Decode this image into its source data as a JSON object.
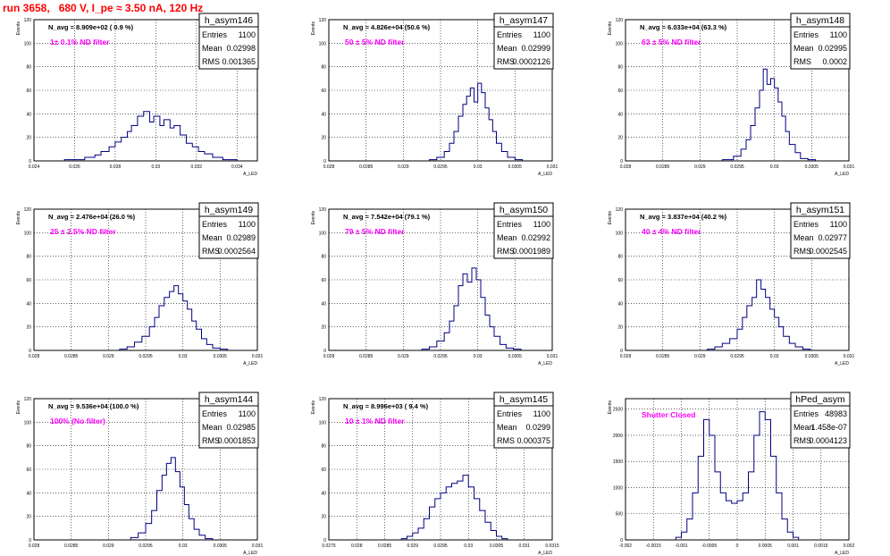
{
  "run_title": "run 3658,   680 V, I_pe ≈ 3.50 nA, 120 Hz",
  "colors": {
    "histogram": "#000080",
    "filter_label": "#ff00ff",
    "title": "#ff0000",
    "grid": "#000000"
  },
  "stats_labels": {
    "entries": "Entries",
    "mean": "Mean",
    "rms": "RMS"
  },
  "y_axis_label": "Events",
  "x_axis_label": "A_LED",
  "chart_data": [
    {
      "type": "histogram",
      "name": "h_asym146",
      "navg": "N_avg = 8.909e+02 ( 0.9 %)",
      "filter": "1± 0.1% ND filter",
      "entries": "1100",
      "mean": "0.02998",
      "rms": "0.001365",
      "xlim": [
        0.024,
        0.035
      ],
      "ylim": [
        0,
        120
      ],
      "xticks": [
        "0.024",
        "0.026",
        "0.028",
        "0.03",
        "0.032",
        "0.034"
      ],
      "xtick_values": [
        0.024,
        0.026,
        0.028,
        0.03,
        0.032,
        0.034
      ],
      "yticks": [
        "0",
        "20",
        "40",
        "60",
        "80",
        "100",
        "120"
      ],
      "bins": [
        [
          0.0255,
          0.0265,
          1
        ],
        [
          0.0265,
          0.027,
          3
        ],
        [
          0.027,
          0.0273,
          5
        ],
        [
          0.0273,
          0.0277,
          8
        ],
        [
          0.0277,
          0.028,
          12
        ],
        [
          0.028,
          0.0283,
          16
        ],
        [
          0.0283,
          0.0286,
          20
        ],
        [
          0.0286,
          0.0288,
          25
        ],
        [
          0.0288,
          0.0291,
          30
        ],
        [
          0.0291,
          0.0294,
          38
        ],
        [
          0.0294,
          0.0297,
          42
        ],
        [
          0.0297,
          0.0299,
          33
        ],
        [
          0.0299,
          0.0302,
          38
        ],
        [
          0.0302,
          0.0304,
          30
        ],
        [
          0.0304,
          0.0307,
          35
        ],
        [
          0.0307,
          0.0309,
          28
        ],
        [
          0.0309,
          0.0312,
          30
        ],
        [
          0.0312,
          0.0315,
          22
        ],
        [
          0.0315,
          0.0318,
          15
        ],
        [
          0.0318,
          0.0321,
          12
        ],
        [
          0.0321,
          0.0324,
          8
        ],
        [
          0.0324,
          0.0328,
          6
        ],
        [
          0.0328,
          0.0333,
          3
        ],
        [
          0.0333,
          0.034,
          1
        ]
      ]
    },
    {
      "type": "histogram",
      "name": "h_asym147",
      "navg": "N_avg = 4.826e+04 (50.6 %)",
      "filter": "50 ± 5% ND filter",
      "entries": "1100",
      "mean": "0.02999",
      "rms": "0.0002126",
      "xlim": [
        0.028,
        0.031
      ],
      "ylim": [
        0,
        120
      ],
      "xticks": [
        "0.028",
        "0.0285",
        "0.029",
        "0.0295",
        "0.03",
        "0.0305",
        "0.031"
      ],
      "xtick_values": [
        0.028,
        0.0285,
        0.029,
        0.0295,
        0.03,
        0.0305,
        0.031
      ],
      "yticks": [
        "0",
        "20",
        "40",
        "60",
        "80",
        "100",
        "120"
      ],
      "bins": [
        [
          0.02935,
          0.02945,
          1
        ],
        [
          0.02945,
          0.02955,
          3
        ],
        [
          0.02955,
          0.02962,
          8
        ],
        [
          0.02962,
          0.02968,
          15
        ],
        [
          0.02968,
          0.02974,
          25
        ],
        [
          0.02974,
          0.0298,
          38
        ],
        [
          0.0298,
          0.02985,
          48
        ],
        [
          0.02985,
          0.0299,
          55
        ],
        [
          0.0299,
          0.02995,
          62
        ],
        [
          0.02995,
          0.03,
          50
        ],
        [
          0.03,
          0.03005,
          66
        ],
        [
          0.03005,
          0.0301,
          58
        ],
        [
          0.0301,
          0.03015,
          45
        ],
        [
          0.03015,
          0.0302,
          35
        ],
        [
          0.0302,
          0.03025,
          25
        ],
        [
          0.03025,
          0.03032,
          15
        ],
        [
          0.03032,
          0.0304,
          8
        ],
        [
          0.0304,
          0.0305,
          3
        ],
        [
          0.0305,
          0.0306,
          1
        ]
      ]
    },
    {
      "type": "histogram",
      "name": "h_asym148",
      "navg": "N_avg = 6.033e+04 (63.3 %)",
      "filter": "63 ± 5% ND filter",
      "entries": "1100",
      "mean": "0.02995",
      "rms": "0.0002",
      "xlim": [
        0.028,
        0.031
      ],
      "ylim": [
        0,
        120
      ],
      "xticks": [
        "0.028",
        "0.0285",
        "0.029",
        "0.0295",
        "0.03",
        "0.0305",
        "0.031"
      ],
      "xtick_values": [
        0.028,
        0.0285,
        0.029,
        0.0295,
        0.03,
        0.0305,
        0.031
      ],
      "yticks": [
        "0",
        "20",
        "40",
        "60",
        "80",
        "100",
        "120"
      ],
      "bins": [
        [
          0.0293,
          0.02945,
          1
        ],
        [
          0.02945,
          0.02955,
          4
        ],
        [
          0.02955,
          0.02962,
          10
        ],
        [
          0.02962,
          0.02968,
          18
        ],
        [
          0.02968,
          0.02974,
          30
        ],
        [
          0.02974,
          0.0298,
          45
        ],
        [
          0.0298,
          0.02985,
          60
        ],
        [
          0.02985,
          0.0299,
          78
        ],
        [
          0.0299,
          0.02995,
          65
        ],
        [
          0.02995,
          0.03,
          70
        ],
        [
          0.03,
          0.03005,
          62
        ],
        [
          0.03005,
          0.0301,
          50
        ],
        [
          0.0301,
          0.03015,
          38
        ],
        [
          0.03015,
          0.0302,
          25
        ],
        [
          0.0302,
          0.03028,
          14
        ],
        [
          0.03028,
          0.03035,
          7
        ],
        [
          0.03035,
          0.03045,
          2
        ],
        [
          0.03045,
          0.03055,
          1
        ]
      ]
    },
    {
      "type": "histogram",
      "name": "h_asym149",
      "navg": "N_avg = 2.476e+04 (26.0 %)",
      "filter": "25 ± 2.5% ND filter",
      "entries": "1100",
      "mean": "0.02989",
      "rms": "0.0002564",
      "xlim": [
        0.028,
        0.031
      ],
      "ylim": [
        0,
        120
      ],
      "xticks": [
        "0.028",
        "0.0285",
        "0.029",
        "0.0295",
        "0.03",
        "0.0305",
        "0.031"
      ],
      "xtick_values": [
        0.028,
        0.0285,
        0.029,
        0.0295,
        0.03,
        0.0305,
        0.031
      ],
      "yticks": [
        "0",
        "20",
        "40",
        "60",
        "80",
        "100",
        "120"
      ],
      "bins": [
        [
          0.02915,
          0.02925,
          1
        ],
        [
          0.02925,
          0.02935,
          3
        ],
        [
          0.02935,
          0.02945,
          7
        ],
        [
          0.02945,
          0.02955,
          12
        ],
        [
          0.02955,
          0.02962,
          20
        ],
        [
          0.02962,
          0.02968,
          28
        ],
        [
          0.02968,
          0.02975,
          38
        ],
        [
          0.02975,
          0.02982,
          45
        ],
        [
          0.02982,
          0.02988,
          50
        ],
        [
          0.02988,
          0.02994,
          55
        ],
        [
          0.02994,
          0.03,
          48
        ],
        [
          0.03,
          0.03006,
          42
        ],
        [
          0.03006,
          0.03012,
          35
        ],
        [
          0.03012,
          0.03018,
          25
        ],
        [
          0.03018,
          0.03025,
          18
        ],
        [
          0.03025,
          0.03032,
          10
        ],
        [
          0.03032,
          0.0304,
          5
        ],
        [
          0.0304,
          0.0305,
          2
        ],
        [
          0.0305,
          0.0306,
          1
        ]
      ]
    },
    {
      "type": "histogram",
      "name": "h_asym150",
      "navg": "N_avg = 7.542e+04 (79.1 %)",
      "filter": "79 ± 5% ND filter",
      "entries": "1100",
      "mean": "0.02992",
      "rms": "0.0001989",
      "xlim": [
        0.028,
        0.031
      ],
      "ylim": [
        0,
        120
      ],
      "xticks": [
        "0.028",
        "0.0285",
        "0.029",
        "0.0295",
        "0.03",
        "0.0305",
        "0.031"
      ],
      "xtick_values": [
        0.028,
        0.0285,
        0.029,
        0.0295,
        0.03,
        0.0305,
        0.031
      ],
      "yticks": [
        "0",
        "20",
        "40",
        "60",
        "80",
        "100",
        "120"
      ],
      "bins": [
        [
          0.02925,
          0.02935,
          1
        ],
        [
          0.02935,
          0.02945,
          3
        ],
        [
          0.02945,
          0.02955,
          8
        ],
        [
          0.02955,
          0.02962,
          15
        ],
        [
          0.02962,
          0.02968,
          25
        ],
        [
          0.02968,
          0.02974,
          38
        ],
        [
          0.02974,
          0.0298,
          55
        ],
        [
          0.0298,
          0.02986,
          65
        ],
        [
          0.02986,
          0.02992,
          58
        ],
        [
          0.02992,
          0.02998,
          70
        ],
        [
          0.02998,
          0.03004,
          60
        ],
        [
          0.03004,
          0.0301,
          45
        ],
        [
          0.0301,
          0.03016,
          30
        ],
        [
          0.03016,
          0.03022,
          20
        ],
        [
          0.03022,
          0.0303,
          12
        ],
        [
          0.0303,
          0.03038,
          5
        ],
        [
          0.03038,
          0.03048,
          2
        ],
        [
          0.03048,
          0.03058,
          1
        ]
      ]
    },
    {
      "type": "histogram",
      "name": "h_asym151",
      "navg": "N_avg = 3.837e+04 (40.2 %)",
      "filter": "40 ± 4% ND filter",
      "entries": "1100",
      "mean": "0.02977",
      "rms": "0.0002545",
      "xlim": [
        0.028,
        0.031
      ],
      "ylim": [
        0,
        120
      ],
      "xticks": [
        "0.028",
        "0.0285",
        "0.029",
        "0.0295",
        "0.03",
        "0.0305",
        "0.031"
      ],
      "xtick_values": [
        0.028,
        0.0285,
        0.029,
        0.0295,
        0.03,
        0.0305,
        0.031
      ],
      "yticks": [
        "0",
        "20",
        "40",
        "60",
        "80",
        "100",
        "120"
      ],
      "bins": [
        [
          0.0291,
          0.0292,
          1
        ],
        [
          0.0292,
          0.0293,
          3
        ],
        [
          0.0293,
          0.0294,
          6
        ],
        [
          0.0294,
          0.0295,
          10
        ],
        [
          0.0295,
          0.02957,
          18
        ],
        [
          0.02957,
          0.02963,
          28
        ],
        [
          0.02963,
          0.0297,
          38
        ],
        [
          0.0297,
          0.02976,
          45
        ],
        [
          0.02976,
          0.02982,
          60
        ],
        [
          0.02982,
          0.02988,
          52
        ],
        [
          0.02988,
          0.02994,
          45
        ],
        [
          0.02994,
          0.03,
          35
        ],
        [
          0.03,
          0.03006,
          28
        ],
        [
          0.03006,
          0.03012,
          20
        ],
        [
          0.03012,
          0.0302,
          12
        ],
        [
          0.0302,
          0.03028,
          6
        ],
        [
          0.03028,
          0.03038,
          3
        ],
        [
          0.03038,
          0.03048,
          1
        ]
      ]
    },
    {
      "type": "histogram",
      "name": "h_asym144",
      "navg": "N_avg = 9.536e+04 (100.0 %)",
      "filter": "100% (No filter)",
      "entries": "1100",
      "mean": "0.02985",
      "rms": "0.0001853",
      "xlim": [
        0.028,
        0.031
      ],
      "ylim": [
        0,
        120
      ],
      "xticks": [
        "0.028",
        "0.0285",
        "0.029",
        "0.0295",
        "0.03",
        "0.0305",
        "0.031"
      ],
      "xtick_values": [
        0.028,
        0.0285,
        0.029,
        0.0295,
        0.03,
        0.0305,
        0.031
      ],
      "yticks": [
        "0",
        "20",
        "40",
        "60",
        "80",
        "100",
        "120"
      ],
      "bins": [
        [
          0.0293,
          0.0294,
          2
        ],
        [
          0.0294,
          0.0295,
          6
        ],
        [
          0.0295,
          0.02958,
          14
        ],
        [
          0.02958,
          0.02965,
          25
        ],
        [
          0.02965,
          0.02972,
          42
        ],
        [
          0.02972,
          0.02978,
          55
        ],
        [
          0.02978,
          0.02984,
          65
        ],
        [
          0.02984,
          0.0299,
          70
        ],
        [
          0.0299,
          0.02996,
          58
        ],
        [
          0.02996,
          0.03002,
          45
        ],
        [
          0.03002,
          0.03008,
          30
        ],
        [
          0.03008,
          0.03015,
          18
        ],
        [
          0.03015,
          0.03022,
          9
        ],
        [
          0.03022,
          0.0303,
          4
        ],
        [
          0.0303,
          0.0304,
          1
        ]
      ]
    },
    {
      "type": "histogram",
      "name": "h_asym145",
      "navg": "N_avg = 8.996e+03 ( 9.4 %)",
      "filter": "10 ± 1% ND filter",
      "entries": "1100",
      "mean": "0.0299",
      "rms": "0.000375",
      "xlim": [
        0.0275,
        0.0315
      ],
      "ylim": [
        0,
        120
      ],
      "xticks": [
        "0.0275",
        "0.028",
        "0.0285",
        "0.029",
        "0.0295",
        "0.03",
        "0.0305",
        "0.031",
        "0.0315"
      ],
      "xtick_values": [
        0.0275,
        0.028,
        0.0285,
        0.029,
        0.0295,
        0.03,
        0.0305,
        0.031,
        0.0315
      ],
      "yticks": [
        "0",
        "20",
        "40",
        "60",
        "80",
        "100",
        "120"
      ],
      "bins": [
        [
          0.0288,
          0.0289,
          1
        ],
        [
          0.0289,
          0.029,
          3
        ],
        [
          0.029,
          0.0291,
          6
        ],
        [
          0.0291,
          0.0292,
          10
        ],
        [
          0.0292,
          0.0293,
          18
        ],
        [
          0.0293,
          0.0294,
          28
        ],
        [
          0.0294,
          0.0295,
          35
        ],
        [
          0.0295,
          0.0296,
          40
        ],
        [
          0.0296,
          0.0297,
          45
        ],
        [
          0.0297,
          0.0298,
          48
        ],
        [
          0.0298,
          0.0299,
          50
        ],
        [
          0.0299,
          0.03,
          55
        ],
        [
          0.03,
          0.0301,
          45
        ],
        [
          0.0301,
          0.0302,
          35
        ],
        [
          0.0302,
          0.0303,
          25
        ],
        [
          0.0303,
          0.0304,
          15
        ],
        [
          0.0304,
          0.0305,
          8
        ],
        [
          0.0305,
          0.0306,
          3
        ],
        [
          0.0306,
          0.0307,
          1
        ]
      ]
    },
    {
      "type": "histogram",
      "name": "hPed_asym",
      "navg": "",
      "filter": "Shutter Closed",
      "entries": "48983",
      "mean": "1.458e-07",
      "rms": "0.0004123",
      "xlim": [
        -0.002,
        0.002
      ],
      "ylim": [
        0,
        2700
      ],
      "xticks": [
        "-0.002",
        "-0.0015",
        "-0.001",
        "-0.0005",
        "0",
        "0.0005",
        "0.001",
        "0.0015",
        "0.002"
      ],
      "xtick_values": [
        -0.002,
        -0.0015,
        -0.001,
        -0.0005,
        0,
        0.0005,
        0.001,
        0.0015,
        0.002
      ],
      "yticks": [
        "0",
        "500",
        "1000",
        "1500",
        "2000",
        "2500"
      ],
      "bins": [
        [
          -0.0011,
          -0.001,
          50
        ],
        [
          -0.001,
          -0.0009,
          150
        ],
        [
          -0.0009,
          -0.0008,
          400
        ],
        [
          -0.0008,
          -0.0007,
          900
        ],
        [
          -0.0007,
          -0.0006,
          1600
        ],
        [
          -0.0006,
          -0.0005,
          2300
        ],
        [
          -0.0005,
          -0.0004,
          2000
        ],
        [
          -0.0004,
          -0.0003,
          1300
        ],
        [
          -0.0003,
          -0.0002,
          900
        ],
        [
          -0.0002,
          -0.0001,
          750
        ],
        [
          -0.0001,
          0.0,
          700
        ],
        [
          0.0,
          0.0001,
          750
        ],
        [
          0.0001,
          0.0002,
          900
        ],
        [
          0.0002,
          0.0003,
          1300
        ],
        [
          0.0003,
          0.0004,
          2000
        ],
        [
          0.0004,
          0.0005,
          2450
        ],
        [
          0.0005,
          0.0006,
          2300
        ],
        [
          0.0006,
          0.0007,
          1600
        ],
        [
          0.0007,
          0.0008,
          900
        ],
        [
          0.0008,
          0.0009,
          400
        ],
        [
          0.0009,
          0.001,
          150
        ],
        [
          0.001,
          0.0011,
          50
        ]
      ]
    }
  ]
}
